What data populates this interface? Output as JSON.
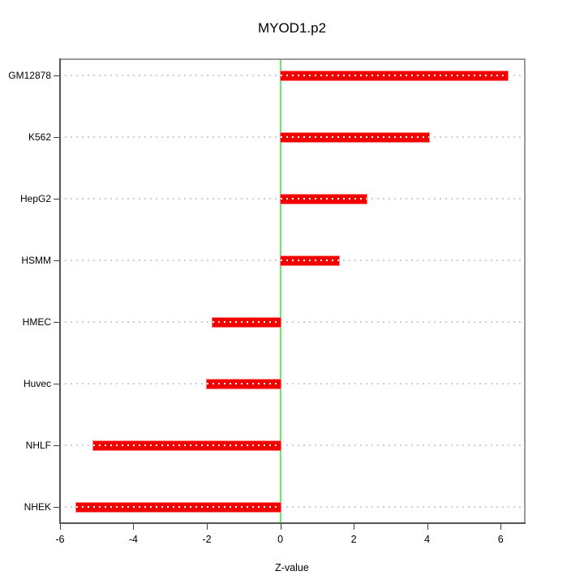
{
  "chart_data": {
    "type": "bar",
    "orientation": "horizontal",
    "title": "MYOD1.p2",
    "xlabel": "Z-value",
    "categories": [
      "GM12878",
      "K562",
      "HepG2",
      "HSMM",
      "HMEC",
      "Huvec",
      "NHLF",
      "NHEK"
    ],
    "values": [
      6.2,
      4.05,
      2.35,
      1.6,
      -1.85,
      -2.0,
      -5.1,
      -5.55
    ],
    "xticks": [
      -6,
      -4,
      -2,
      0,
      2,
      4,
      6
    ],
    "xlim": [
      -6.02,
      6.68
    ],
    "grid": true,
    "legend_position": "none",
    "colors": {
      "bar": "#f20000",
      "bar_edge": "#ff8080",
      "zero_line": "#66ee66",
      "gridline": "#cfcfcf",
      "frame_dark": "#555555",
      "frame_light": "#9a9a9a",
      "tick": "#404040",
      "text": "#000000",
      "background": "#ffffff"
    }
  }
}
